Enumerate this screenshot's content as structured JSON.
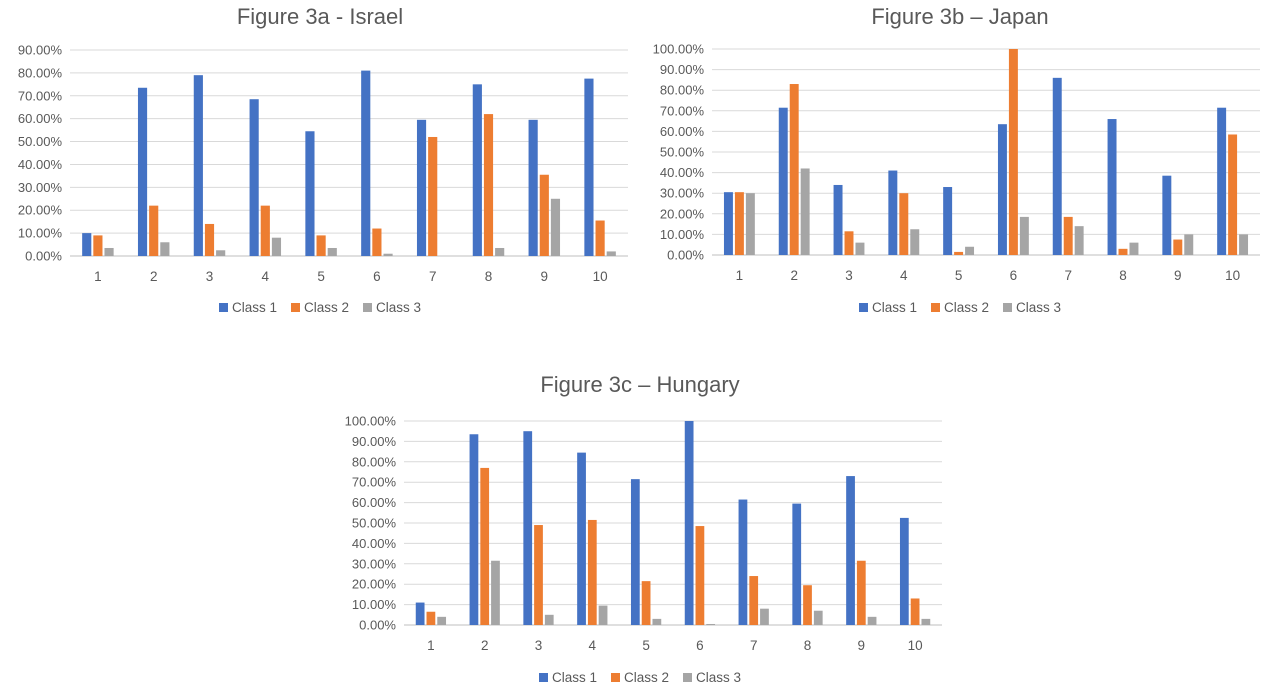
{
  "colors": {
    "class1": "#4472C4",
    "class2": "#ED7D31",
    "class3": "#A5A5A5",
    "grid": "#D9D9D9",
    "axis": "#BFBFBF"
  },
  "chart_data": [
    {
      "type": "bar",
      "title": "Figure 3a - Israel",
      "categories": [
        "1",
        "2",
        "3",
        "4",
        "5",
        "6",
        "7",
        "8",
        "9",
        "10"
      ],
      "ylim": [
        0,
        0.9
      ],
      "yticks": [
        "0.00%",
        "10.00%",
        "20.00%",
        "30.00%",
        "40.00%",
        "50.00%",
        "60.00%",
        "70.00%",
        "80.00%",
        "90.00%"
      ],
      "grid": true,
      "legend": "bottom",
      "series": [
        {
          "name": "Class 1",
          "color": "#4472C4",
          "values": [
            0.1,
            0.735,
            0.79,
            0.685,
            0.545,
            0.81,
            0.595,
            0.75,
            0.595,
            0.775
          ]
        },
        {
          "name": "Class 2",
          "color": "#ED7D31",
          "values": [
            0.09,
            0.22,
            0.14,
            0.22,
            0.09,
            0.12,
            0.52,
            0.62,
            0.355,
            0.155
          ]
        },
        {
          "name": "Class 3",
          "color": "#A5A5A5",
          "values": [
            0.035,
            0.06,
            0.025,
            0.08,
            0.035,
            0.01,
            0.0,
            0.035,
            0.25,
            0.02
          ]
        }
      ]
    },
    {
      "type": "bar",
      "title": "Figure 3b – Japan",
      "categories": [
        "1",
        "2",
        "3",
        "4",
        "5",
        "6",
        "7",
        "8",
        "9",
        "10"
      ],
      "ylim": [
        0,
        1.0
      ],
      "yticks": [
        "0.00%",
        "10.00%",
        "20.00%",
        "30.00%",
        "40.00%",
        "50.00%",
        "60.00%",
        "70.00%",
        "80.00%",
        "90.00%",
        "100.00%"
      ],
      "grid": true,
      "legend": "bottom",
      "series": [
        {
          "name": "Class 1",
          "color": "#4472C4",
          "values": [
            0.305,
            0.715,
            0.34,
            0.41,
            0.33,
            0.635,
            0.86,
            0.66,
            0.385,
            0.715
          ]
        },
        {
          "name": "Class 2",
          "color": "#ED7D31",
          "values": [
            0.305,
            0.83,
            0.115,
            0.3,
            0.015,
            1.0,
            0.185,
            0.03,
            0.075,
            0.585
          ]
        },
        {
          "name": "Class 3",
          "color": "#A5A5A5",
          "values": [
            0.3,
            0.42,
            0.06,
            0.125,
            0.04,
            0.185,
            0.14,
            0.06,
            0.1,
            0.1
          ]
        }
      ]
    },
    {
      "type": "bar",
      "title": "Figure 3c – Hungary",
      "categories": [
        "1",
        "2",
        "3",
        "4",
        "5",
        "6",
        "7",
        "8",
        "9",
        "10"
      ],
      "ylim": [
        0,
        1.0
      ],
      "yticks": [
        "0.00%",
        "10.00%",
        "20.00%",
        "30.00%",
        "40.00%",
        "50.00%",
        "60.00%",
        "70.00%",
        "80.00%",
        "90.00%",
        "100.00%"
      ],
      "grid": true,
      "legend": "bottom",
      "series": [
        {
          "name": "Class 1",
          "color": "#4472C4",
          "values": [
            0.11,
            0.935,
            0.95,
            0.845,
            0.715,
            1.0,
            0.615,
            0.595,
            0.73,
            0.525
          ]
        },
        {
          "name": "Class 2",
          "color": "#ED7D31",
          "values": [
            0.065,
            0.77,
            0.49,
            0.515,
            0.215,
            0.485,
            0.24,
            0.195,
            0.315,
            0.13
          ]
        },
        {
          "name": "Class 3",
          "color": "#A5A5A5",
          "values": [
            0.04,
            0.315,
            0.05,
            0.095,
            0.03,
            0.005,
            0.08,
            0.07,
            0.04,
            0.03
          ]
        }
      ]
    }
  ]
}
